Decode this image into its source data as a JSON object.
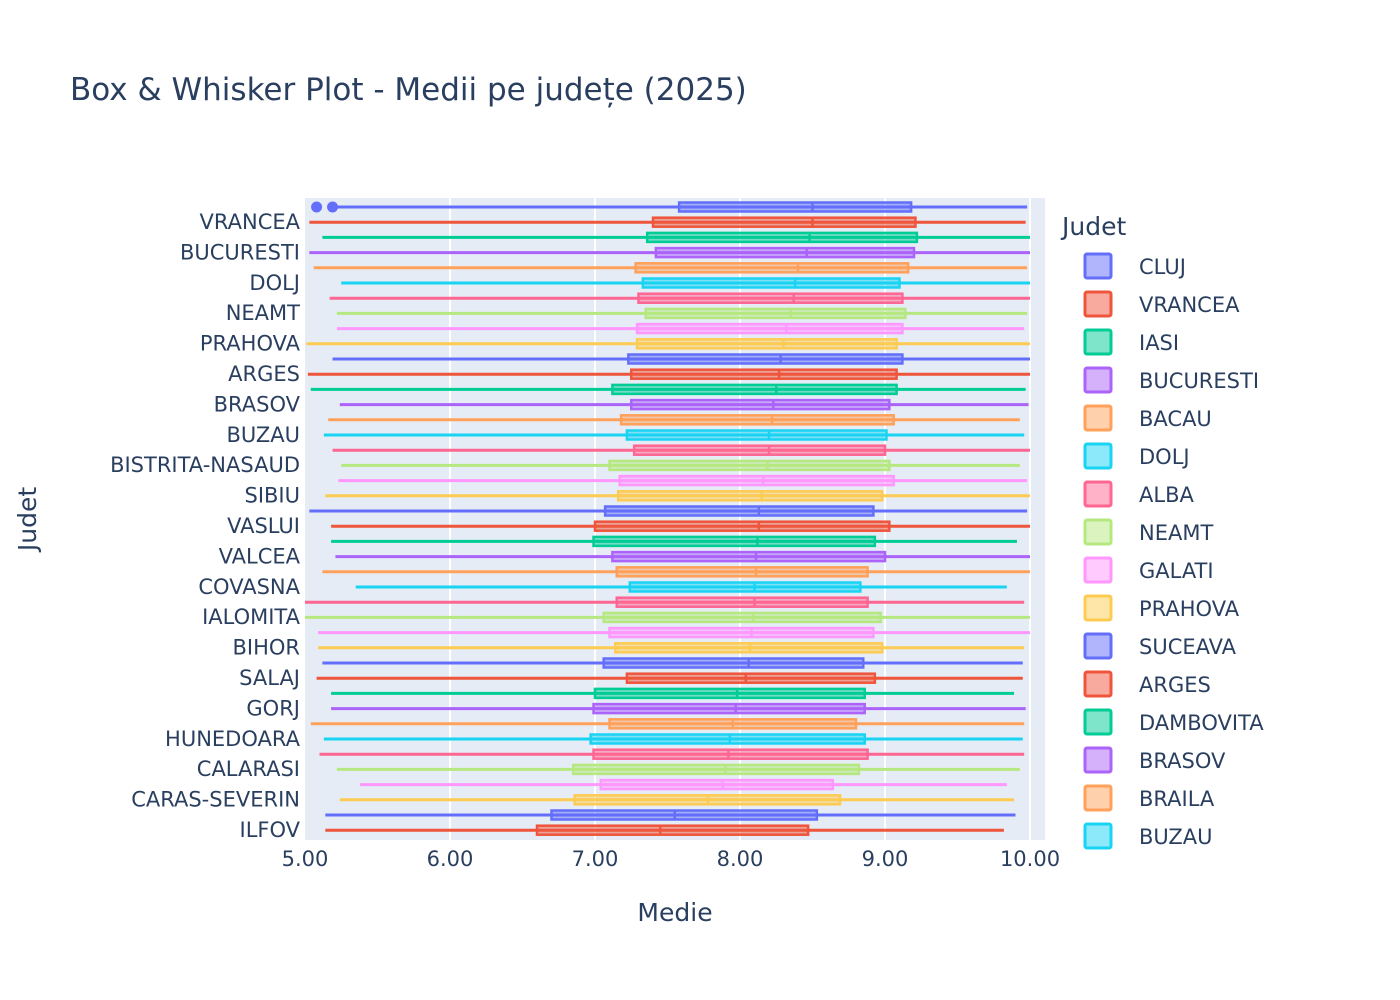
{
  "chart_data": {
    "type": "box",
    "orientation": "horizontal",
    "title": "Box & Whisker Plot - Medii pe județe (2025)",
    "xlabel": "Medie",
    "ylabel": "Judet",
    "xlim": [
      5.0,
      10.0
    ],
    "xticks": [
      "5.00",
      "6.00",
      "7.00",
      "8.00",
      "9.00",
      "10.00"
    ],
    "yticklabels": [
      "VRANCEA",
      "BUCURESTI",
      "DOLJ",
      "NEAMT",
      "PRAHOVA",
      "ARGES",
      "BRASOV",
      "BUZAU",
      "BISTRITA-NASAUD",
      "SIBIU",
      "VASLUI",
      "VALCEA",
      "COVASNA",
      "IALOMITA",
      "BIHOR",
      "SALAJ",
      "GORJ",
      "HUNEDOARA",
      "CALARASI",
      "CARAS-SEVERIN",
      "ILFOV"
    ],
    "legend": {
      "title": "Judet",
      "placement": "right",
      "entries": [
        "CLUJ",
        "VRANCEA",
        "IASI",
        "BUCURESTI",
        "BACAU",
        "DOLJ",
        "ALBA",
        "NEAMT",
        "GALATI",
        "PRAHOVA",
        "SUCEAVA",
        "ARGES",
        "DAMBOVITA",
        "BRASOV",
        "BRAILA",
        "BUZAU"
      ]
    },
    "colors": [
      "#636efa",
      "#ef553b",
      "#00cc96",
      "#ab63fa",
      "#ffa15a",
      "#19d3f3",
      "#ff6692",
      "#b6e880",
      "#ff97ff",
      "#fecb52"
    ],
    "series": [
      {
        "name": "CLUJ",
        "min": 5.18,
        "q1": 7.58,
        "median": 8.5,
        "q3": 9.18,
        "max": 9.98,
        "outliers": [
          5.08,
          5.19
        ]
      },
      {
        "name": "VRANCEA",
        "min": 5.03,
        "q1": 7.4,
        "median": 8.5,
        "q3": 9.21,
        "max": 9.97
      },
      {
        "name": "IASI",
        "min": 5.12,
        "q1": 7.36,
        "median": 8.48,
        "q3": 9.22,
        "max": 10.0
      },
      {
        "name": "BUCURESTI",
        "min": 5.03,
        "q1": 7.42,
        "median": 8.46,
        "q3": 9.2,
        "max": 10.0
      },
      {
        "name": "BACAU",
        "min": 5.06,
        "q1": 7.28,
        "median": 8.4,
        "q3": 9.16,
        "max": 9.98
      },
      {
        "name": "DOLJ",
        "min": 5.25,
        "q1": 7.33,
        "median": 8.38,
        "q3": 9.1,
        "max": 10.0
      },
      {
        "name": "ALBA",
        "min": 5.17,
        "q1": 7.3,
        "median": 8.37,
        "q3": 9.12,
        "max": 10.0
      },
      {
        "name": "NEAMT",
        "min": 5.22,
        "q1": 7.35,
        "median": 8.35,
        "q3": 9.14,
        "max": 9.98
      },
      {
        "name": "GALATI",
        "min": 5.22,
        "q1": 7.29,
        "median": 8.32,
        "q3": 9.12,
        "max": 9.96
      },
      {
        "name": "PRAHOVA",
        "min": 5.01,
        "q1": 7.29,
        "median": 8.3,
        "q3": 9.08,
        "max": 10.0
      },
      {
        "name": "SUCEAVA",
        "min": 5.19,
        "q1": 7.23,
        "median": 8.28,
        "q3": 9.12,
        "max": 10.0
      },
      {
        "name": "ARGES",
        "min": 5.02,
        "q1": 7.25,
        "median": 8.27,
        "q3": 9.08,
        "max": 10.0
      },
      {
        "name": "DAMBOVITA",
        "min": 5.04,
        "q1": 7.12,
        "median": 8.25,
        "q3": 9.08,
        "max": 9.97
      },
      {
        "name": "BRASOV",
        "min": 5.24,
        "q1": 7.25,
        "median": 8.23,
        "q3": 9.03,
        "max": 9.99
      },
      {
        "name": "BRAILA",
        "min": 5.16,
        "q1": 7.18,
        "median": 8.22,
        "q3": 9.06,
        "max": 9.93
      },
      {
        "name": "BUZAU",
        "min": 5.13,
        "q1": 7.22,
        "median": 8.2,
        "q3": 9.01,
        "max": 9.96
      },
      {
        "name": "",
        "min": 5.19,
        "q1": 7.27,
        "median": 8.2,
        "q3": 9.0,
        "max": 10.0
      },
      {
        "name": "",
        "min": 5.25,
        "q1": 7.1,
        "median": 8.19,
        "q3": 9.03,
        "max": 9.93
      },
      {
        "name": "",
        "min": 5.23,
        "q1": 7.17,
        "median": 8.16,
        "q3": 9.06,
        "max": 9.98
      },
      {
        "name": "",
        "min": 5.14,
        "q1": 7.16,
        "median": 8.15,
        "q3": 8.98,
        "max": 10.0
      },
      {
        "name": "",
        "min": 5.03,
        "q1": 7.07,
        "median": 8.13,
        "q3": 8.92,
        "max": 9.98
      },
      {
        "name": "",
        "min": 5.18,
        "q1": 7.0,
        "median": 8.13,
        "q3": 9.03,
        "max": 10.0
      },
      {
        "name": "",
        "min": 5.18,
        "q1": 6.99,
        "median": 8.12,
        "q3": 8.93,
        "max": 9.91
      },
      {
        "name": "",
        "min": 5.21,
        "q1": 7.12,
        "median": 8.11,
        "q3": 9.0,
        "max": 10.0
      },
      {
        "name": "",
        "min": 5.12,
        "q1": 7.15,
        "median": 8.11,
        "q3": 8.88,
        "max": 10.0
      },
      {
        "name": "",
        "min": 5.35,
        "q1": 7.24,
        "median": 8.1,
        "q3": 8.83,
        "max": 9.84
      },
      {
        "name": "",
        "min": 5.0,
        "q1": 7.15,
        "median": 8.1,
        "q3": 8.88,
        "max": 9.96
      },
      {
        "name": "",
        "min": 5.0,
        "q1": 7.06,
        "median": 8.09,
        "q3": 8.97,
        "max": 10.0
      },
      {
        "name": "",
        "min": 5.09,
        "q1": 7.1,
        "median": 8.08,
        "q3": 8.92,
        "max": 10.0
      },
      {
        "name": "",
        "min": 5.09,
        "q1": 7.14,
        "median": 8.07,
        "q3": 8.98,
        "max": 9.96
      },
      {
        "name": "",
        "min": 5.12,
        "q1": 7.06,
        "median": 8.06,
        "q3": 8.85,
        "max": 9.95
      },
      {
        "name": "",
        "min": 5.08,
        "q1": 7.22,
        "median": 8.04,
        "q3": 8.93,
        "max": 9.95
      },
      {
        "name": "",
        "min": 5.18,
        "q1": 7.0,
        "median": 7.98,
        "q3": 8.86,
        "max": 9.89
      },
      {
        "name": "",
        "min": 5.18,
        "q1": 6.99,
        "median": 7.97,
        "q3": 8.86,
        "max": 9.97
      },
      {
        "name": "",
        "min": 5.04,
        "q1": 7.1,
        "median": 7.95,
        "q3": 8.8,
        "max": 9.96
      },
      {
        "name": "",
        "min": 5.13,
        "q1": 6.97,
        "median": 7.93,
        "q3": 8.86,
        "max": 9.95
      },
      {
        "name": "",
        "min": 5.1,
        "q1": 6.99,
        "median": 7.92,
        "q3": 8.88,
        "max": 9.96
      },
      {
        "name": "",
        "min": 5.22,
        "q1": 6.85,
        "median": 7.9,
        "q3": 8.82,
        "max": 9.93
      },
      {
        "name": "",
        "min": 5.38,
        "q1": 7.04,
        "median": 7.88,
        "q3": 8.64,
        "max": 9.84
      },
      {
        "name": "",
        "min": 5.24,
        "q1": 6.86,
        "median": 7.78,
        "q3": 8.69,
        "max": 9.89
      },
      {
        "name": "",
        "min": 5.14,
        "q1": 6.7,
        "median": 7.55,
        "q3": 8.53,
        "max": 9.9
      },
      {
        "name": "",
        "min": 5.14,
        "q1": 6.6,
        "median": 7.45,
        "q3": 8.47,
        "max": 9.82
      }
    ]
  }
}
